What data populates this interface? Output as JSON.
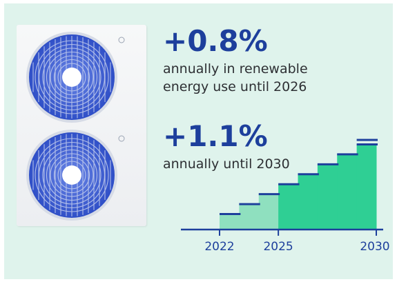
{
  "stats": [
    {
      "value": "+0.8%",
      "line1": "annually in renewable",
      "line2": "energy use until 2026"
    },
    {
      "value": "+1.1%",
      "line1": "annually until 2030"
    }
  ],
  "colors": {
    "background": "#dff3ec",
    "accent_blue": "#1d3f9c",
    "step_light": "#8fe0bf",
    "step_dark": "#2fcf94",
    "fan_blue": "#3a5bd4"
  },
  "icons": [
    "heat-pump-fan-icon"
  ],
  "chart_data": {
    "type": "step-area",
    "x": [
      2022,
      2023,
      2024,
      2025,
      2026,
      2027,
      2028,
      2029,
      2030
    ],
    "values": [
      1,
      2,
      3,
      4,
      5,
      6,
      7,
      8,
      9
    ],
    "tick_labels": [
      "2022",
      "2025",
      "2030"
    ],
    "tick_positions": [
      2022,
      2025,
      2030
    ],
    "highlight_split": 2025,
    "title": "",
    "xlabel": "",
    "ylabel": ""
  }
}
